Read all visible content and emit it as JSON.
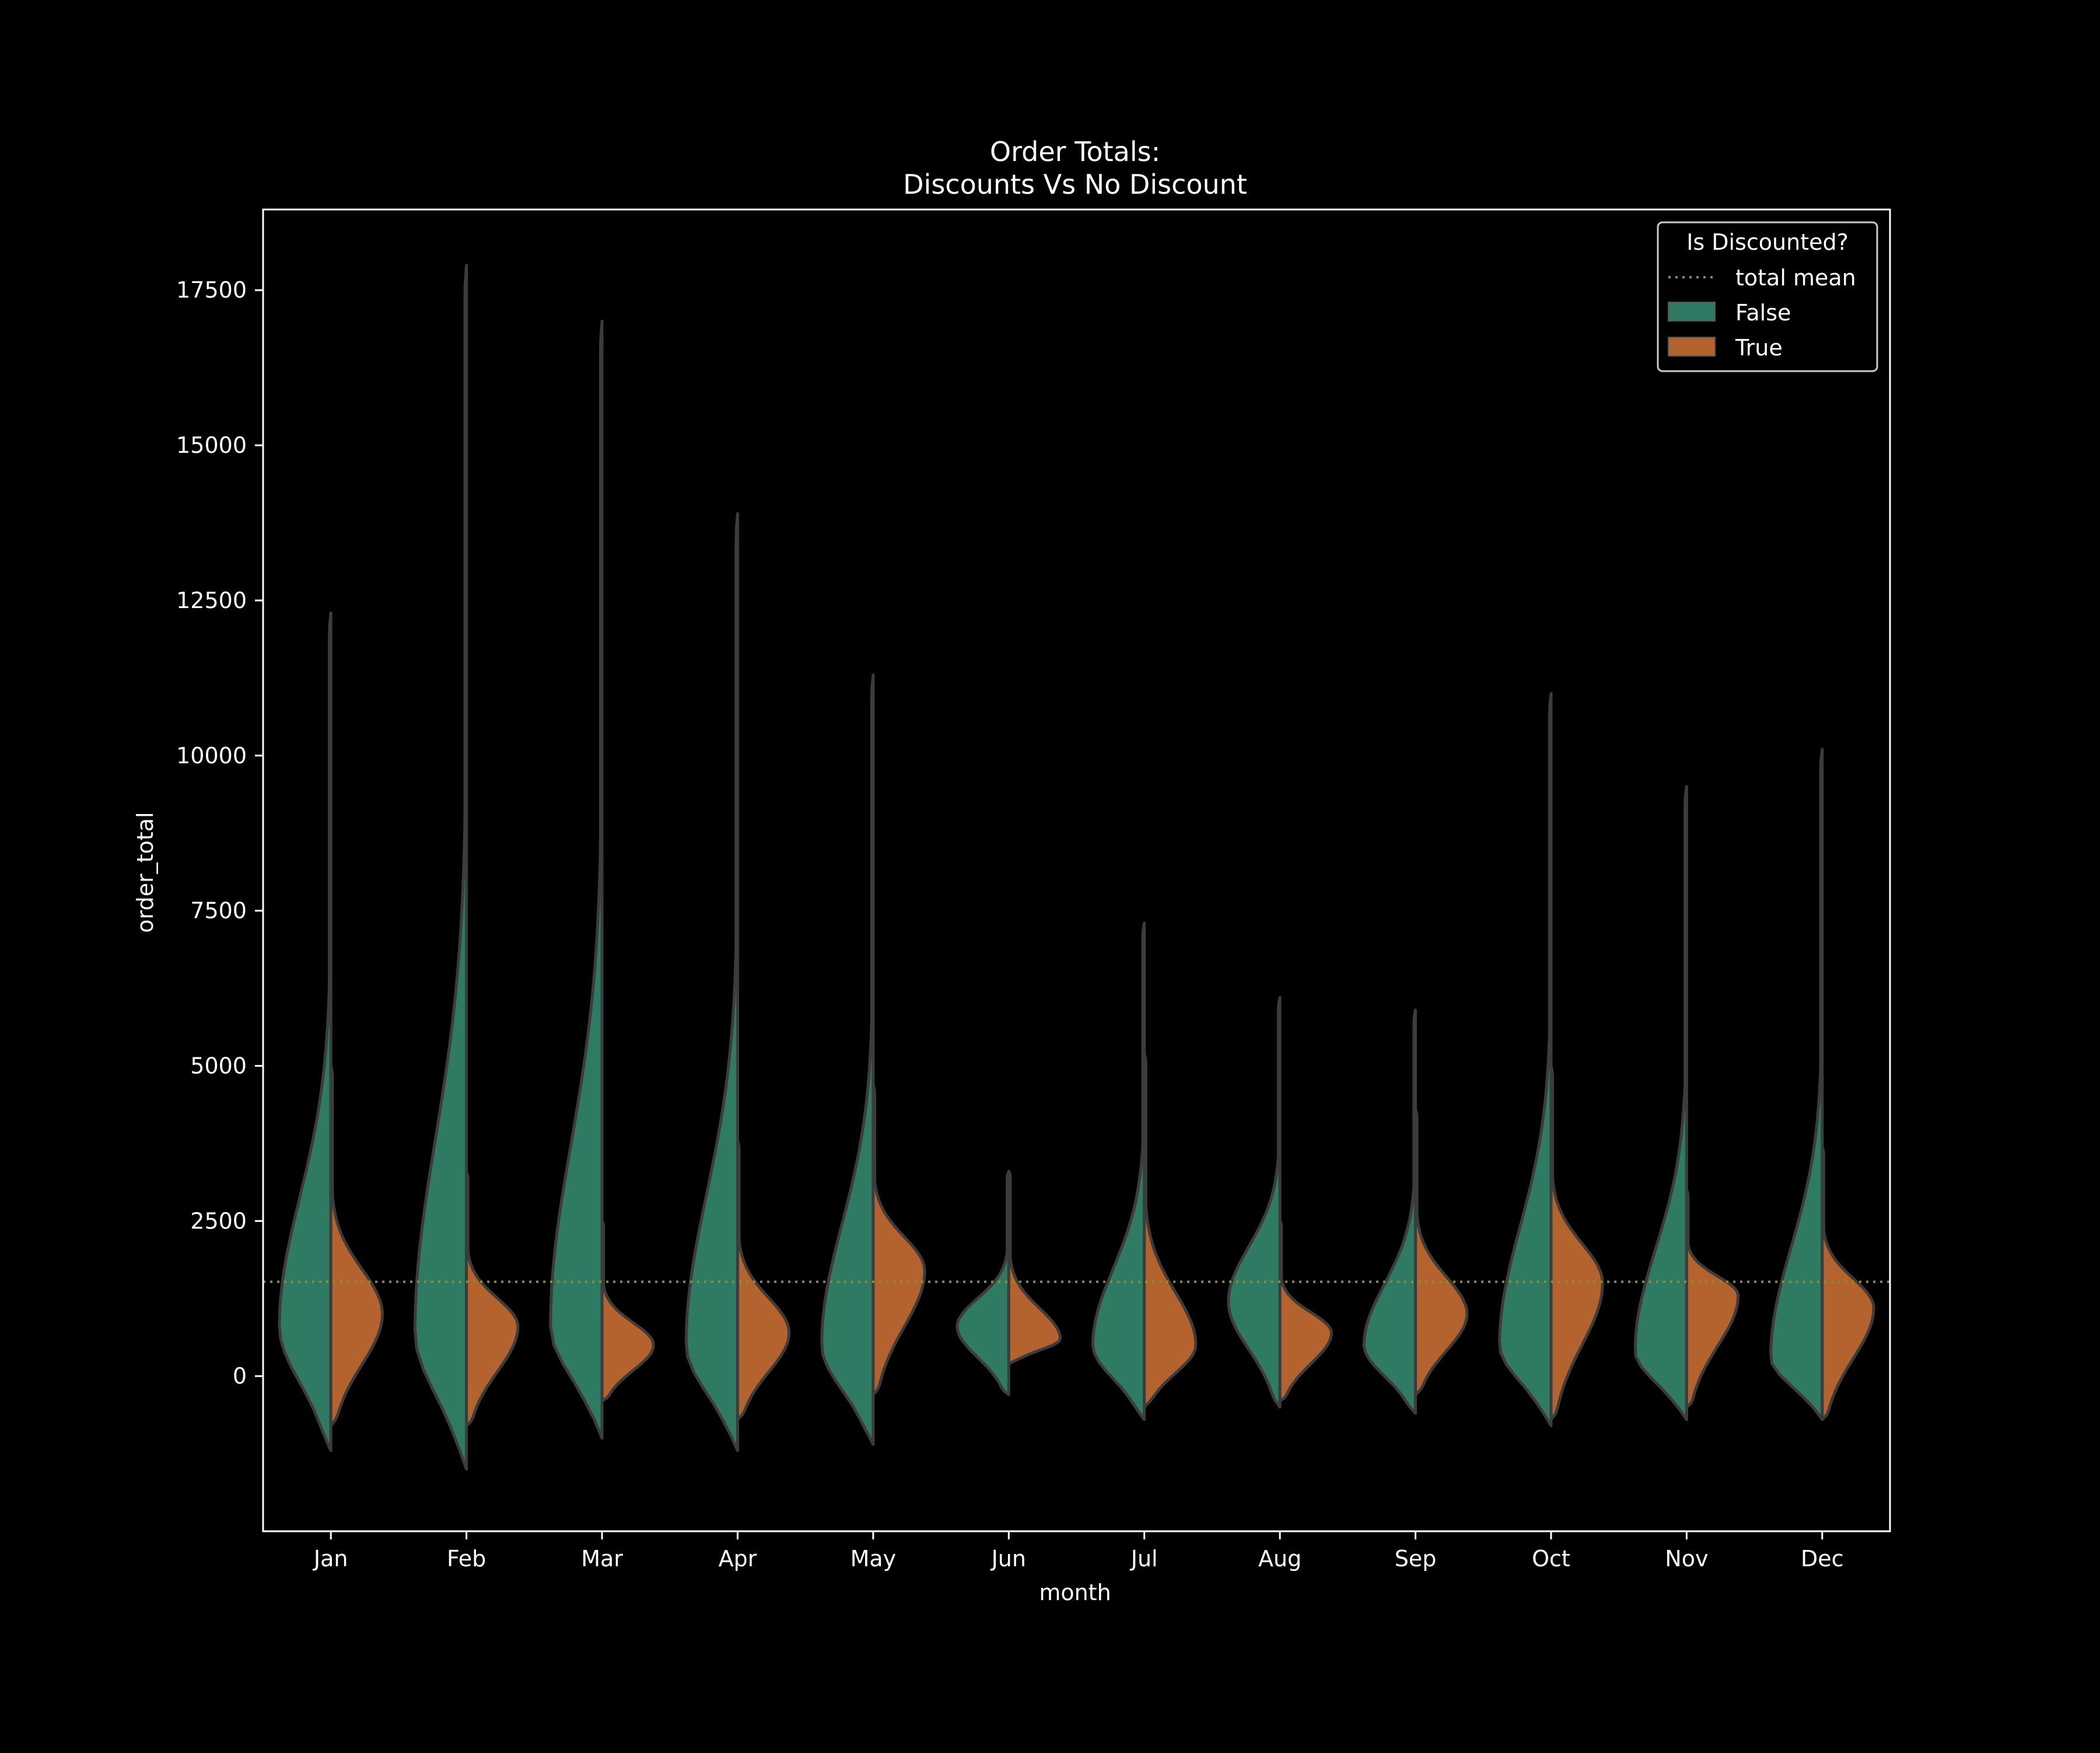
{
  "chart_data": {
    "type": "violin",
    "title": "Order Totals:",
    "subtitle": "Discounts Vs No Discount",
    "xlabel": "month",
    "ylabel": "order_total",
    "ylim": [
      -2500,
      18800
    ],
    "yticks": [
      0,
      2500,
      5000,
      7500,
      10000,
      12500,
      15000,
      17500
    ],
    "categories": [
      "Jan",
      "Feb",
      "Mar",
      "Apr",
      "May",
      "Jun",
      "Jul",
      "Aug",
      "Sep",
      "Oct",
      "Nov",
      "Dec"
    ],
    "mean_line": {
      "label": "total mean",
      "value": 1520,
      "color": "#8f8f2a"
    },
    "legend": {
      "title": "Is Discounted?",
      "placement": "top-right"
    },
    "grid": false,
    "split": true,
    "series": [
      {
        "name": "False",
        "color": "#2e7a62",
        "violins": [
          {
            "month": "Jan",
            "min": -1200,
            "max": 12300,
            "mode": 800
          },
          {
            "month": "Feb",
            "min": -1500,
            "max": 17900,
            "mode": 700
          },
          {
            "month": "Mar",
            "min": -1000,
            "max": 17000,
            "mode": 800
          },
          {
            "month": "Apr",
            "min": -1200,
            "max": 13900,
            "mode": 500
          },
          {
            "month": "May",
            "min": -1100,
            "max": 11300,
            "mode": 500
          },
          {
            "month": "Jun",
            "min": -300,
            "max": 3300,
            "mode": 800
          },
          {
            "month": "Jul",
            "min": -700,
            "max": 7300,
            "mode": 500
          },
          {
            "month": "Aug",
            "min": -500,
            "max": 6100,
            "mode": 1200
          },
          {
            "month": "Sep",
            "min": -600,
            "max": 5900,
            "mode": 500
          },
          {
            "month": "Oct",
            "min": -800,
            "max": 11000,
            "mode": 500
          },
          {
            "month": "Nov",
            "min": -700,
            "max": 9500,
            "mode": 400
          },
          {
            "month": "Dec",
            "min": -700,
            "max": 10100,
            "mode": 300
          }
        ]
      },
      {
        "name": "True",
        "color": "#b4622e",
        "violins": [
          {
            "month": "Jan",
            "min": -800,
            "max": 5000,
            "mode": 1000
          },
          {
            "month": "Feb",
            "min": -800,
            "max": 3300,
            "mode": 800
          },
          {
            "month": "Mar",
            "min": -400,
            "max": 2500,
            "mode": 500
          },
          {
            "month": "Apr",
            "min": -700,
            "max": 3800,
            "mode": 700
          },
          {
            "month": "May",
            "min": -300,
            "max": 4700,
            "mode": 1700
          },
          {
            "month": "Jun",
            "min": 200,
            "max": 3300,
            "mode": 600
          },
          {
            "month": "Jul",
            "min": -500,
            "max": 5200,
            "mode": 500
          },
          {
            "month": "Aug",
            "min": -400,
            "max": 2500,
            "mode": 700
          },
          {
            "month": "Sep",
            "min": -300,
            "max": 4300,
            "mode": 1000
          },
          {
            "month": "Oct",
            "min": -700,
            "max": 5000,
            "mode": 1500
          },
          {
            "month": "Nov",
            "min": -500,
            "max": 3000,
            "mode": 1300
          },
          {
            "month": "Dec",
            "min": -700,
            "max": 3700,
            "mode": 1100
          }
        ]
      }
    ]
  }
}
